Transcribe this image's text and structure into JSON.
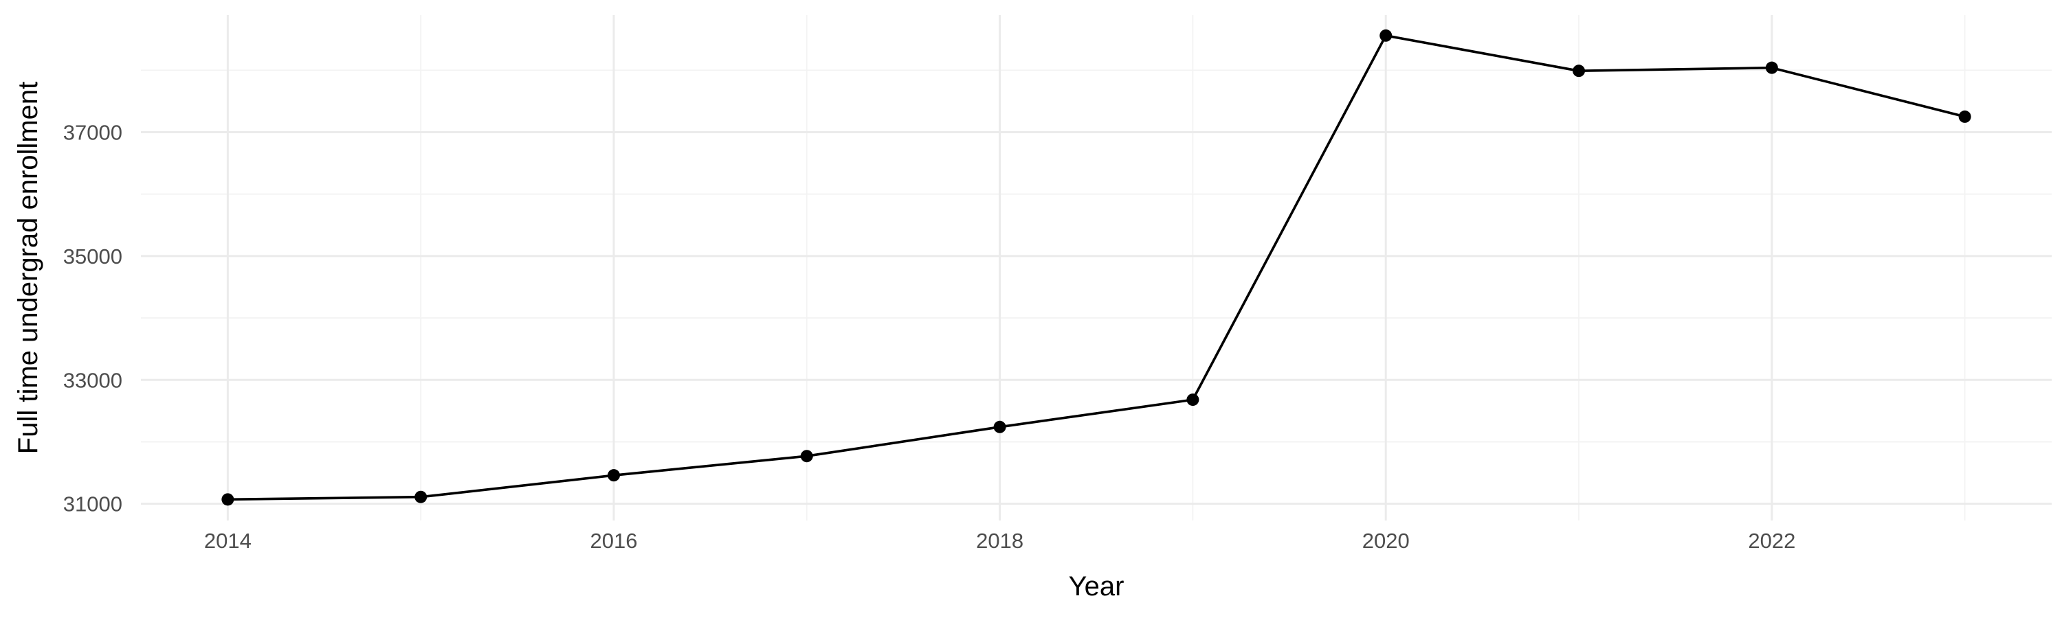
{
  "chart_data": {
    "type": "line",
    "title": "",
    "xlabel": "Year",
    "ylabel": "Full time undergrad enrollment",
    "x": [
      2014,
      2015,
      2016,
      2017,
      2018,
      2019,
      2020,
      2021,
      2022,
      2023
    ],
    "series": [
      {
        "values": [
          31070,
          31110,
          31460,
          31770,
          32240,
          32680,
          38560,
          37990,
          38040,
          37250
        ]
      }
    ],
    "xlim": [
      2013.55,
      2023.45
    ],
    "ylim": [
      30730,
      38890
    ],
    "xticks": [
      2014,
      2016,
      2018,
      2020,
      2022
    ],
    "xtick_labels": [
      "2014",
      "2016",
      "2018",
      "2020",
      "2022"
    ],
    "yticks": [
      31000,
      33000,
      35000,
      37000
    ],
    "ytick_labels": [
      "31000",
      "33000",
      "35000",
      "37000"
    ],
    "grid": true,
    "legend": "none",
    "colors": {
      "line": "#000000",
      "grid_major": "#ebebeb",
      "grid_minor": "#f3f3f3",
      "tick_text": "#4d4d4d"
    }
  }
}
